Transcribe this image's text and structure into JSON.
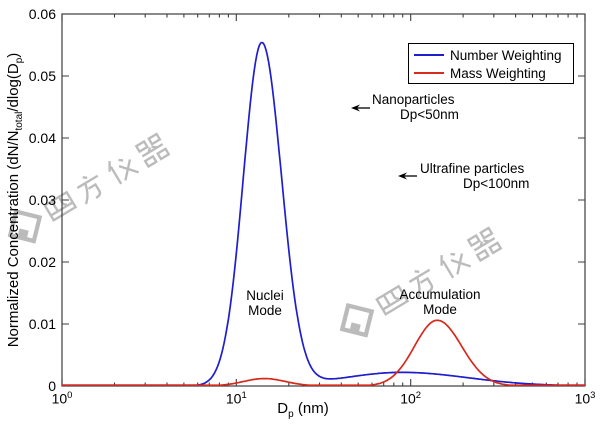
{
  "chart_data": {
    "type": "line",
    "title": "",
    "xlabel": {
      "pre": "D",
      "sub": "p",
      "post": " (nm)"
    },
    "ylabel": {
      "p1": "Normalized Concentration (dN/N",
      "sub1": "total",
      "p2": "/dlog(D",
      "sub2": "p",
      "p3": ")"
    },
    "axis_color": "#3d3d3d",
    "grid": false,
    "x_axis": {
      "scale": "log",
      "min": 1,
      "max": 1000,
      "unit": "nm",
      "tick_base": 10,
      "tick_exponents": [
        0,
        1,
        2,
        3
      ],
      "minor_ticks_per_decade": [
        2,
        3,
        4,
        5,
        6,
        7,
        8,
        9
      ]
    },
    "y_axis": {
      "scale": "linear",
      "min": 0,
      "max": 0.06,
      "ticks": [
        0,
        0.01,
        0.02,
        0.03,
        0.04,
        0.05,
        0.06
      ],
      "tick_labels": [
        "0",
        "0.01",
        "0.02",
        "0.03",
        "0.04",
        "0.05",
        "0.06"
      ]
    },
    "legend": {
      "position": "top-right",
      "items": [
        {
          "label": "Number Weighting",
          "color": "#1e1ecf"
        },
        {
          "label": "Mass Weighting",
          "color": "#d52a1c"
        }
      ]
    },
    "series": [
      {
        "name": "Number Weighting",
        "color": "#1e1ecf",
        "peaks": [
          {
            "center_nm": 14,
            "amplitude": 0.0553,
            "sigma_log10_left": 0.106,
            "sigma_log10_right": 0.113
          },
          {
            "center_nm": 89,
            "amplitude": 0.0022,
            "sigma_log10_left": 0.33,
            "sigma_log10_right": 0.38
          }
        ],
        "peak_summary": {
          "mode": "Nuclei Mode",
          "peak_nm": 14,
          "peak_value": 0.055
        }
      },
      {
        "name": "Mass Weighting",
        "color": "#d52a1c",
        "peaks": [
          {
            "center_nm": 14.5,
            "amplitude": 0.0012,
            "sigma_log10_left": 0.12,
            "sigma_log10_right": 0.12
          },
          {
            "center_nm": 142,
            "amplitude": 0.0106,
            "sigma_log10_left": 0.13,
            "sigma_log10_right": 0.14
          }
        ],
        "peak_summary": {
          "mode": "Accumulation Mode",
          "peak_nm": 140,
          "peak_value": 0.0105
        }
      }
    ],
    "annotations": [
      {
        "id": "nanoparticles",
        "lines": [
          "Nanoparticles",
          "Dp<50nm"
        ],
        "arrow": "left"
      },
      {
        "id": "ultrafine-particles",
        "lines": [
          "Ultrafine particles",
          "Dp<100nm"
        ],
        "arrow": "left"
      },
      {
        "id": "nuclei-mode",
        "lines": [
          "Nuclei",
          "Mode"
        ],
        "arrow": "none"
      },
      {
        "id": "accumulation-mode",
        "lines": [
          "Accumulation",
          "Mode"
        ],
        "arrow": "none"
      }
    ]
  },
  "watermark": {
    "text": "四方仪器",
    "count": 2
  }
}
